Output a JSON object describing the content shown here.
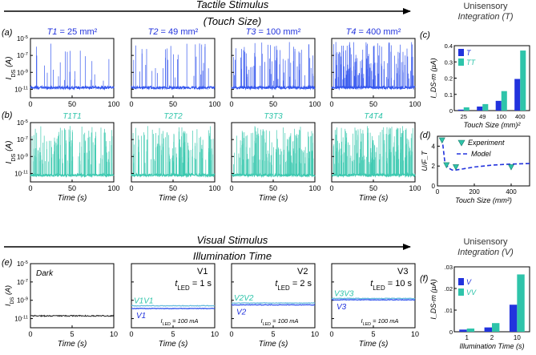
{
  "header_tactile": {
    "title": "Tactile Stimulus",
    "subtitle": "(Touch Size)"
  },
  "header_visual": {
    "title": "Visual Stimulus",
    "subtitle": "Illumination Time"
  },
  "panel_labels": {
    "a": "(a)",
    "b": "(b)",
    "c": "(c)",
    "d": "(d)",
    "e": "(e)",
    "f": "(f)"
  },
  "colors": {
    "blue": "#2233dd",
    "teal": "#2ec4aa",
    "trace_blue": "#3355ee",
    "trace_teal": "#3cc9b0",
    "dark": "#222222",
    "light_blue_trace": "#66bbdd"
  },
  "chart_data": [
    {
      "id": "a",
      "type": "line",
      "ylabel": "I_DS (A)",
      "ylabel_main": "I",
      "ylabel_sub": "DS",
      "ylabel_unit": " (A)",
      "xlabel": "",
      "xlim": [
        0,
        100
      ],
      "ylim": [
        "10^-12",
        "10^-5"
      ],
      "xticks": [
        "0",
        "50",
        "100"
      ],
      "yticks": [
        {
          "base": "10",
          "exp": "-5"
        },
        {
          "base": "10",
          "exp": "-7"
        },
        {
          "base": "10",
          "exp": "-9"
        },
        {
          "base": "10",
          "exp": "-11"
        }
      ],
      "series": [
        {
          "title": "T1 = 25 mm²",
          "title_main": "T1",
          "title_rest": " = 25 mm²",
          "baseline": "≈ 1e-10.8",
          "spike_density": "low"
        },
        {
          "title": "T2 = 49 mm²",
          "title_main": "T2",
          "title_rest": " = 49 mm²",
          "baseline": "≈ 1e-10.7",
          "spike_density": "medium-low"
        },
        {
          "title": "T3 = 100 mm²",
          "title_main": "T3",
          "title_rest": " = 100 mm²",
          "baseline": "≈ 1e-10.8",
          "spike_density": "medium-high"
        },
        {
          "title": "T4 = 400 mm²",
          "title_main": "T4",
          "title_rest": " = 400 mm²",
          "baseline": "≈ 1e-10.8",
          "spike_density": "high"
        }
      ]
    },
    {
      "id": "b",
      "type": "line",
      "ylabel": "I_DS (A)",
      "ylabel_main": "I",
      "ylabel_sub": "DS",
      "ylabel_unit": " (A)",
      "xlabel": "Time (s)",
      "xlim": [
        0,
        100
      ],
      "ylim": [
        "10^-12",
        "10^-5"
      ],
      "xticks": [
        "0",
        "50",
        "100"
      ],
      "yticks": [
        {
          "base": "10",
          "exp": "-5"
        },
        {
          "base": "10",
          "exp": "-7"
        },
        {
          "base": "10",
          "exp": "-9"
        },
        {
          "base": "10",
          "exp": "-11"
        }
      ],
      "series": [
        {
          "title": "T1T1",
          "spike_density": "high"
        },
        {
          "title": "T2T2",
          "spike_density": "high"
        },
        {
          "title": "T3T3",
          "spike_density": "high"
        },
        {
          "title": "T4T4",
          "spike_density": "very high"
        }
      ]
    },
    {
      "id": "c",
      "type": "bar",
      "title": "Unisensory Integration (T)",
      "title_line1": "Unisensory",
      "title_line2": "Integration (T)",
      "ylabel": "I_DS-m (µA)",
      "xlabel": "Touch Size (mm)²",
      "categories": [
        "25",
        "49",
        "100",
        "400"
      ],
      "ylim": [
        0,
        0.4
      ],
      "yticks": [
        "0",
        "0.1",
        "0.2",
        "0.3",
        "0.4"
      ],
      "series": [
        {
          "name": "T",
          "values": [
            0.006,
            0.025,
            0.06,
            0.195
          ]
        },
        {
          "name": "TT",
          "values": [
            0.02,
            0.04,
            0.12,
            0.37
          ]
        }
      ]
    },
    {
      "id": "d",
      "type": "scatter",
      "ylabel": "U/F_T",
      "xlabel": "Touch Size (mm²)",
      "xlim": [
        0,
        500
      ],
      "ylim": [
        0,
        5
      ],
      "xticks": [
        "0",
        "200",
        "400"
      ],
      "yticks": [
        "0",
        "2",
        "4"
      ],
      "series": [
        {
          "name": "Experiment",
          "x": [
            25,
            49,
            100,
            400
          ],
          "y": [
            4.6,
            2.1,
            1.9,
            1.9
          ]
        },
        {
          "name": "Model",
          "x": [
            25,
            40,
            60,
            80,
            100,
            150,
            200,
            300,
            400,
            500
          ],
          "y": [
            4.8,
            2.4,
            1.8,
            1.6,
            1.6,
            1.75,
            1.9,
            2.1,
            2.2,
            2.25
          ]
        }
      ]
    },
    {
      "id": "e",
      "type": "line",
      "ylabel": "I_DS (A)",
      "xlabel": "Time (s)",
      "xlim": [
        0,
        10
      ],
      "ylim": [
        "10^-12",
        "10^-5"
      ],
      "xticks": [
        "0",
        "5",
        "10"
      ],
      "yticks": [
        {
          "base": "10",
          "exp": "-5"
        },
        {
          "base": "10",
          "exp": "-7"
        },
        {
          "base": "10",
          "exp": "-9"
        },
        {
          "base": "10",
          "exp": "-11"
        }
      ],
      "panels": [
        {
          "title": "Dark",
          "level_log": -10.7
        },
        {
          "title": "V1",
          "tled_main": "t",
          "tled_sub": "LED",
          "tled_value": " = 1 s",
          "iled_main": "I",
          "iled_sub": "LED",
          "iled_value": " = 100 mA",
          "trace_labels": [
            "V1V1",
            "V1"
          ],
          "levels_log": [
            -9.6,
            -9.9
          ]
        },
        {
          "title": "V2",
          "tled_main": "t",
          "tled_sub": "LED",
          "tled_value": " = 2 s",
          "iled_main": "I",
          "iled_sub": "LED",
          "iled_value": " = 100 mA",
          "trace_labels": [
            "V2V2",
            "V2"
          ],
          "levels_log": [
            -9.3,
            -9.5
          ]
        },
        {
          "title": "V3",
          "tled_main": "t",
          "tled_sub": "LED",
          "tled_value": " = 10 s",
          "iled_main": "I",
          "iled_sub": "LED",
          "iled_value": " = 100 mA",
          "trace_labels": [
            "V3V3",
            "V3"
          ],
          "levels_log": [
            -8.8,
            -8.95
          ]
        }
      ]
    },
    {
      "id": "f",
      "type": "bar",
      "title": "Unisensory Integration (V)",
      "title_line1": "Unisensory",
      "title_line2": "Integration (V)",
      "ylabel": "I_DS-m (µA)",
      "xlabel": "Illumination Time (s)",
      "categories": [
        "1",
        "2",
        "10"
      ],
      "ylim": [
        0,
        0.03
      ],
      "yticks": [
        "0",
        ".01",
        ".02",
        ".03"
      ],
      "series": [
        {
          "name": "V",
          "values": [
            0.001,
            0.002,
            0.0125
          ]
        },
        {
          "name": "VV",
          "values": [
            0.0015,
            0.004,
            0.0265
          ]
        }
      ]
    }
  ]
}
